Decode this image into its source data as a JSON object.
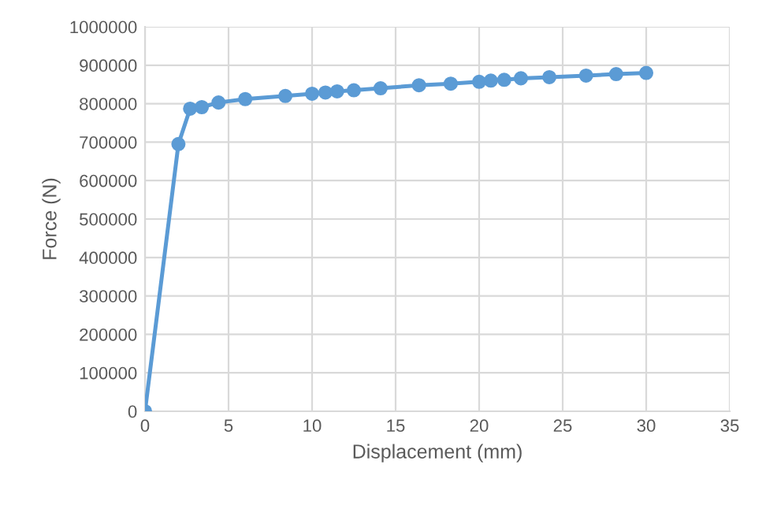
{
  "chart_data": {
    "type": "line",
    "xlabel": "Displacement (mm)",
    "ylabel": "Force (N)",
    "x": [
      0,
      2.0,
      2.7,
      3.4,
      4.4,
      6.0,
      8.4,
      10.0,
      10.8,
      11.5,
      12.5,
      14.1,
      16.4,
      18.3,
      20.0,
      20.7,
      21.5,
      22.5,
      24.2,
      26.4,
      28.2,
      30.0
    ],
    "series": [
      {
        "color": "#5b9bd5",
        "values": [
          0,
          695000,
          787000,
          791000,
          803000,
          812000,
          820000,
          826000,
          829000,
          832000,
          835000,
          840000,
          848000,
          852000,
          857000,
          860000,
          862000,
          866000,
          869000,
          873000,
          877000,
          880000
        ]
      }
    ],
    "xlim": [
      0,
      35
    ],
    "xticks": [
      0,
      5,
      10,
      15,
      20,
      25,
      30,
      35
    ],
    "ylim": [
      0,
      1000000
    ],
    "yticks": [
      0,
      100000,
      200000,
      300000,
      400000,
      500000,
      600000,
      700000,
      800000,
      900000,
      1000000
    ],
    "grid": true,
    "marker": "circle",
    "line_style": "solid"
  }
}
